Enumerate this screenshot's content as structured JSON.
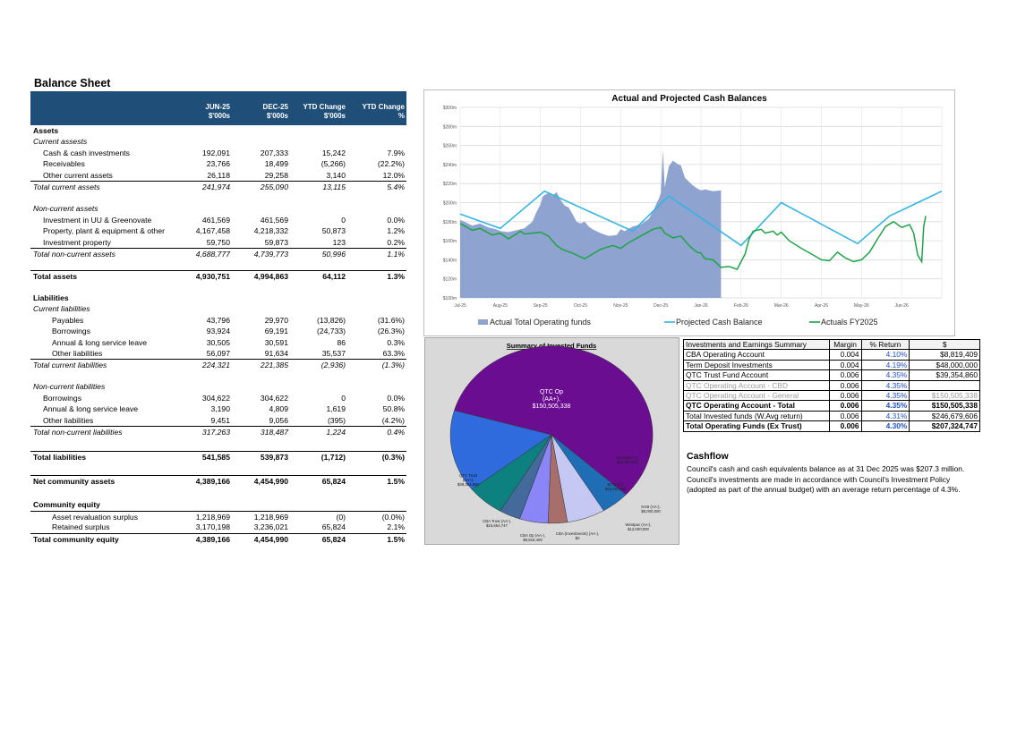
{
  "balance_sheet": {
    "title": "Balance Sheet",
    "headers": [
      {
        "l1": "JUN-25",
        "l2": "$'000s"
      },
      {
        "l1": "DEC-25",
        "l2": "$'000s"
      },
      {
        "l1": "YTD Change",
        "l2": "$'000s"
      },
      {
        "l1": "YTD Change",
        "l2": "%"
      }
    ],
    "rows": [
      {
        "label": "Assets",
        "vals": [
          "",
          "",
          "",
          ""
        ],
        "style": "bold",
        "y": 0
      },
      {
        "label": "Current assests",
        "vals": [
          "",
          "",
          "",
          ""
        ],
        "style": "ital",
        "y": 1
      },
      {
        "label": "Cash & cash investments",
        "vals": [
          "192,091",
          "207,333",
          "15,242",
          "7.9%"
        ],
        "style": "indent",
        "y": 2
      },
      {
        "label": "Receivables",
        "vals": [
          "23,766",
          "18,499",
          "(5,266)",
          "(22.2%)"
        ],
        "style": "indent",
        "y": 3
      },
      {
        "label": "Other current assets",
        "vals": [
          "26,118",
          "29,258",
          "3,140",
          "12.0%"
        ],
        "style": "indent",
        "y": 4
      },
      {
        "label": "Total current assets",
        "vals": [
          "241,974",
          "255,090",
          "13,115",
          "5.4%"
        ],
        "style": "ital total",
        "y": 5
      },
      {
        "label": "Non-current assets",
        "vals": [
          "",
          "",
          "",
          ""
        ],
        "style": "ital",
        "y": 7
      },
      {
        "label": "Investment in UU & Greenovate",
        "vals": [
          "461,569",
          "461,569",
          "0",
          "0.0%"
        ],
        "style": "indent",
        "y": 8
      },
      {
        "label": "Property, plant & equipment & other",
        "vals": [
          "4,167,458",
          "4,218,332",
          "50,873",
          "1.2%"
        ],
        "style": "indent",
        "y": 9
      },
      {
        "label": "Investment property",
        "vals": [
          "59,750",
          "59,873",
          "123",
          "0.2%"
        ],
        "style": "indent",
        "y": 10
      },
      {
        "label": "Total non-current assets",
        "vals": [
          "4,688,777",
          "4,739,773",
          "50,996",
          "1.1%"
        ],
        "style": "ital total",
        "y": 11
      },
      {
        "label": "Total assets",
        "vals": [
          "4,930,751",
          "4,994,863",
          "64,112",
          "1.3%"
        ],
        "style": "bold total",
        "y": 13
      },
      {
        "label": "Liabilities",
        "vals": [
          "",
          "",
          "",
          ""
        ],
        "style": "bold",
        "y": 15
      },
      {
        "label": "Current liabilities",
        "vals": [
          "",
          "",
          "",
          ""
        ],
        "style": "ital",
        "y": 16
      },
      {
        "label": "Payables",
        "vals": [
          "43,796",
          "29,970",
          "(13,826)",
          "(31.6%)"
        ],
        "style": "indent2",
        "y": 17
      },
      {
        "label": "Borrowings",
        "vals": [
          "93,924",
          "69,191",
          "(24,733)",
          "(26.3%)"
        ],
        "style": "indent2",
        "y": 18
      },
      {
        "label": "Annual & long service leave",
        "vals": [
          "30,505",
          "30,591",
          "86",
          "0.3%"
        ],
        "style": "indent2",
        "y": 19
      },
      {
        "label": "Other liabilities",
        "vals": [
          "56,097",
          "91,634",
          "35,537",
          "63.3%"
        ],
        "style": "indent2",
        "y": 20
      },
      {
        "label": "Total current liabilities",
        "vals": [
          "224,321",
          "221,385",
          "(2,936)",
          "(1.3%)"
        ],
        "style": "ital total",
        "y": 21
      },
      {
        "label": "Non-current liabilities",
        "vals": [
          "",
          "",
          "",
          ""
        ],
        "style": "ital",
        "y": 23
      },
      {
        "label": "Borrowings",
        "vals": [
          "304,622",
          "304,622",
          "0",
          "0.0%"
        ],
        "style": "indent",
        "y": 24
      },
      {
        "label": "Annual & long service leave",
        "vals": [
          "3,190",
          "4,809",
          "1,619",
          "50.8%"
        ],
        "style": "indent",
        "y": 25
      },
      {
        "label": "Other liabilities",
        "vals": [
          "9,451",
          "9,056",
          "(395)",
          "(4.2%)"
        ],
        "style": "indent",
        "y": 26
      },
      {
        "label": "Total non-current liabilities",
        "vals": [
          "317,263",
          "318,487",
          "1,224",
          "0.4%"
        ],
        "style": "ital total",
        "y": 27
      },
      {
        "label": "Total liabilities",
        "vals": [
          "541,585",
          "539,873",
          "(1,712)",
          "(0.3%)"
        ],
        "style": "bold total",
        "y": 29.2
      },
      {
        "label": "Net community assets",
        "vals": [
          "4,389,166",
          "4,454,990",
          "65,824",
          "1.5%"
        ],
        "style": "bold total",
        "y": 31.4
      },
      {
        "label": "Community equity",
        "vals": [
          "",
          "",
          "",
          ""
        ],
        "style": "bold",
        "y": 33.6
      },
      {
        "label": "Asset revaluation surplus",
        "vals": [
          "1,218,969",
          "1,218,969",
          "(0)",
          "(0.0%)"
        ],
        "style": "indent2 total",
        "y": 34.6
      },
      {
        "label": "Retained surplus",
        "vals": [
          "3,170,198",
          "3,236,021",
          "65,824",
          "2.1%"
        ],
        "style": "indent2",
        "y": 35.6
      },
      {
        "label": "Total community equity",
        "vals": [
          "4,389,166",
          "4,454,990",
          "65,824",
          "1.5%"
        ],
        "style": "bold total",
        "y": 36.6
      }
    ]
  },
  "chart_data": [
    {
      "type": "area",
      "title": "Actual and Projected Cash Balances",
      "y_ticks": [
        "$300m",
        "$280m",
        "$260m",
        "$240m",
        "$220m",
        "$200m",
        "$180m",
        "$160m",
        "$140m",
        "$120m",
        "$100m"
      ],
      "x_ticks": [
        "Jul-25",
        "Aug-25",
        "Sep-25",
        "Oct-25",
        "Nov-25",
        "Dec-25",
        "Jan-26",
        "Feb-26",
        "Mar-26",
        "Apr-26",
        "May-26",
        "Jun-26"
      ],
      "ylim": [
        100,
        300
      ],
      "xlim": [
        0,
        12
      ],
      "series": [
        {
          "name": "Actual Total Operating funds",
          "kind": "area",
          "color": "#8ea3cf",
          "x": [
            0,
            0.1,
            0.3,
            0.5,
            0.7,
            0.9,
            1.0,
            1.2,
            1.4,
            1.6,
            1.8,
            1.9,
            2.0,
            2.05,
            2.1,
            2.2,
            2.3,
            2.4,
            2.5,
            2.6,
            2.7,
            2.8,
            2.9,
            3.0,
            3.1,
            3.2,
            3.3,
            3.5,
            3.7,
            3.9,
            4.0,
            4.1,
            4.3,
            4.5,
            4.6,
            4.7,
            4.8,
            4.9,
            4.95,
            5.0,
            5.05,
            5.1,
            5.15,
            5.2,
            5.3,
            5.4,
            5.5,
            5.6,
            5.7,
            5.8,
            5.9,
            6.0,
            6.1,
            6.2,
            6.3,
            6.5,
            6.5
          ],
          "y": [
            182,
            180,
            176,
            178,
            174,
            172,
            170,
            169,
            171,
            173,
            180,
            190,
            198,
            206,
            208,
            210,
            207,
            211,
            203,
            197,
            195,
            188,
            180,
            178,
            180,
            175,
            172,
            168,
            165,
            166,
            172,
            170,
            175,
            177,
            180,
            183,
            190,
            200,
            204,
            210,
            255,
            216,
            228,
            238,
            244,
            241,
            239,
            226,
            222,
            218,
            215,
            213,
            214,
            213,
            212,
            213,
            100
          ]
        },
        {
          "name": "Projected Cash Balance",
          "kind": "line",
          "color": "#33b5e5",
          "x": [
            0,
            1,
            2.1,
            4.3,
            5.2,
            7.0,
            8.0,
            9.9,
            10.7,
            12
          ],
          "y": [
            188,
            173,
            212,
            170,
            207,
            155,
            200,
            157,
            186,
            212
          ]
        },
        {
          "name": "Actuals FY2025",
          "kind": "line",
          "color": "#1ea446",
          "x": [
            0,
            0.3,
            0.5,
            0.8,
            1.0,
            1.2,
            1.4,
            1.5,
            1.6,
            1.8,
            2.0,
            2.2,
            2.4,
            2.5,
            2.6,
            2.8,
            3.0,
            3.1,
            3.3,
            3.5,
            3.8,
            4.0,
            4.2,
            4.5,
            4.8,
            5.0,
            5.1,
            5.3,
            5.5,
            5.7,
            5.9,
            6.0,
            6.1,
            6.3,
            6.5,
            6.7,
            6.9,
            7.0,
            7.1,
            7.2,
            7.3,
            7.5,
            7.6,
            7.8,
            7.9,
            8.0,
            8.2,
            8.5,
            8.8,
            9.0,
            9.2,
            9.4,
            9.6,
            9.8,
            10.0,
            10.2,
            10.4,
            10.6,
            10.8,
            11.0,
            11.2,
            11.3,
            11.4,
            11.5,
            11.55,
            11.6
          ],
          "y": [
            178,
            171,
            173,
            166,
            168,
            162,
            167,
            170,
            167,
            168,
            169,
            165,
            155,
            152,
            150,
            147,
            143,
            141,
            146,
            151,
            155,
            152,
            158,
            165,
            172,
            174,
            168,
            163,
            165,
            155,
            148,
            147,
            141,
            140,
            132,
            133,
            130,
            138,
            146,
            162,
            170,
            172,
            168,
            170,
            166,
            169,
            160,
            152,
            145,
            140,
            139,
            148,
            142,
            138,
            140,
            148,
            162,
            175,
            180,
            174,
            177,
            168,
            145,
            138,
            175,
            186
          ]
        }
      ],
      "legend": "bottom"
    },
    {
      "type": "pie",
      "title": "Summary of Invested Funds",
      "slices": [
        {
          "label": "QTC Op (AA+), $150,505,338",
          "value": 150505338,
          "color": "#6a0d91"
        },
        {
          "label": "Bendigo (A-), $12,000,000",
          "value": 12000000,
          "color": "#1f6db5"
        },
        {
          "label": "BOQ (A-), $16,000,000",
          "value": 16000000,
          "color": "#c5c8f2"
        },
        {
          "label": "NAB (AA-), $8,000,000",
          "value": 8000000,
          "color": "#a86e6b"
        },
        {
          "label": "Westpac (AA-), $12,000,000",
          "value": 12000000,
          "color": "#8a86f7"
        },
        {
          "label": "CBA (Investments) (AA-), $0",
          "value": 0,
          "color": "#3c3fa7"
        },
        {
          "label": "CBA Op (AA-), $8,819,409",
          "value": 8819409,
          "color": "#436a9a"
        },
        {
          "label": "CBA Trust (AA-), $15,664,747",
          "value": 15664747,
          "color": "#0d8080"
        },
        {
          "label": "QTC Trust (AA+), $39,354,860",
          "value": 39354860,
          "color": "#2f6bdc"
        }
      ]
    }
  ],
  "summary_table": {
    "headers": [
      "Investments and Earnings Summary",
      "Margin",
      "% Return",
      "$"
    ],
    "rows": [
      {
        "name": "CBA Operating Account",
        "margin": "0.004",
        "ret": "4.10%",
        "amt": "$8,819,409",
        "cls": ""
      },
      {
        "name": "Term Deposit Investments",
        "margin": "0.004",
        "ret": "4.19%",
        "amt": "$48,000,000",
        "cls": ""
      },
      {
        "name": "QTC Trust Fund Account",
        "margin": "0.006",
        "ret": "4.35%",
        "amt": "$39,354,860",
        "cls": ""
      },
      {
        "name": "QTC Operating Account - CBD",
        "margin": "0.006",
        "ret": "4.35%",
        "amt": "",
        "cls": "grey"
      },
      {
        "name": "QTC Operating Account - General",
        "margin": "0.006",
        "ret": "4.35%",
        "amt": "$150,505,338",
        "cls": "grey"
      },
      {
        "name": "QTC Operating Account - Total",
        "margin": "0.006",
        "ret": "4.35%",
        "amt": "$150,505,338",
        "cls": "bold"
      },
      {
        "name": "Total Invested funds (W.Avg return)",
        "margin": "0.006",
        "ret": "4.31%",
        "amt": "$246,679,606",
        "cls": ""
      },
      {
        "name": "Total Operating Funds (Ex Trust)",
        "margin": "0.006",
        "ret": "4.30%",
        "amt": "$207,324,747",
        "cls": "bold"
      }
    ]
  },
  "cashflow": {
    "title": "Cashflow",
    "text": "Council's cash and cash equivalents balance as at 31 Dec 2025 was $207.3 million. Council's investments are made in accordance with Council's Investment Policy (adopted as part of the annual budget) with an average return percentage of 4.3%."
  }
}
